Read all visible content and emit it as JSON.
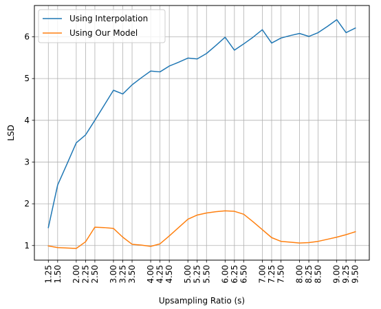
{
  "chart_data": {
    "type": "line",
    "xlabel": "Upsampling Ratio (s)",
    "ylabel": "LSD",
    "xlim": [
      0.875,
      9.875
    ],
    "ylim": [
      0.65,
      6.75
    ],
    "grid": true,
    "legend_position": "top-left",
    "x_ticks": [
      "1.25",
      "1.50",
      "2.00",
      "2.25",
      "2.50",
      "3.00",
      "3.25",
      "3.50",
      "4.00",
      "4.25",
      "4.50",
      "5.00",
      "5.25",
      "5.50",
      "6.00",
      "6.25",
      "6.50",
      "7.00",
      "7.25",
      "7.50",
      "8.00",
      "8.25",
      "8.50",
      "9.00",
      "9.25",
      "9.50"
    ],
    "y_ticks": [
      "1",
      "2",
      "3",
      "4",
      "5",
      "6"
    ],
    "series": [
      {
        "name": "Using Interpolation",
        "color": "#1f77b4",
        "x": [
          1.25,
          1.5,
          1.75,
          2.0,
          2.25,
          2.5,
          2.75,
          3.0,
          3.25,
          3.5,
          3.75,
          4.0,
          4.25,
          4.5,
          4.75,
          5.0,
          5.25,
          5.5,
          5.75,
          6.0,
          6.25,
          6.5,
          6.75,
          7.0,
          7.25,
          7.5,
          7.75,
          8.0,
          8.25,
          8.5,
          8.75,
          9.0,
          9.25,
          9.5
        ],
        "values": [
          1.43,
          2.45,
          2.95,
          3.46,
          3.65,
          4.0,
          4.36,
          4.72,
          4.63,
          4.85,
          5.02,
          5.18,
          5.16,
          5.3,
          5.39,
          5.49,
          5.47,
          5.6,
          5.79,
          5.99,
          5.68,
          5.83,
          5.99,
          6.17,
          5.85,
          5.97,
          6.03,
          6.08,
          6.01,
          6.1,
          6.25,
          6.41,
          6.1,
          6.21
        ]
      },
      {
        "name": "Using Our Model",
        "color": "#ff7f0e",
        "x": [
          1.25,
          1.5,
          1.75,
          2.0,
          2.25,
          2.5,
          2.75,
          3.0,
          3.25,
          3.5,
          3.75,
          4.0,
          4.25,
          4.5,
          4.75,
          5.0,
          5.25,
          5.5,
          5.75,
          6.0,
          6.25,
          6.5,
          6.75,
          7.0,
          7.25,
          7.5,
          7.75,
          8.0,
          8.25,
          8.5,
          8.75,
          9.0,
          9.25,
          9.5
        ],
        "values": [
          0.99,
          0.95,
          0.94,
          0.93,
          1.09,
          1.44,
          1.43,
          1.41,
          1.2,
          1.03,
          1.01,
          0.98,
          1.04,
          1.23,
          1.43,
          1.63,
          1.73,
          1.78,
          1.81,
          1.83,
          1.82,
          1.75,
          1.57,
          1.38,
          1.19,
          1.1,
          1.08,
          1.06,
          1.07,
          1.1,
          1.15,
          1.2,
          1.26,
          1.33
        ]
      }
    ]
  }
}
